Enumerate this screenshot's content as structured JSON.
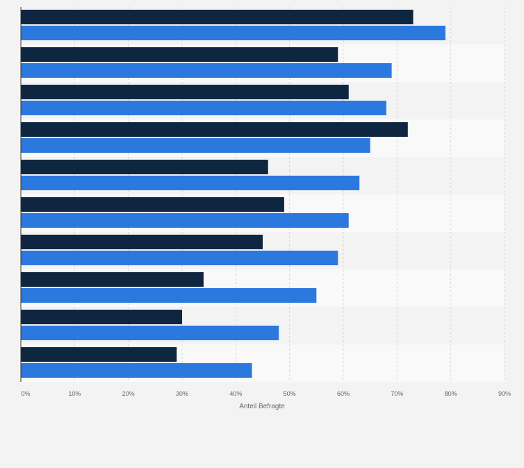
{
  "chart_data": {
    "type": "bar",
    "orientation": "horizontal",
    "title": "",
    "xlabel": "Anteil Befragte",
    "ylabel": "",
    "xlim": [
      0,
      90
    ],
    "x_ticks": [
      "0%",
      "10%",
      "20%",
      "30%",
      "40%",
      "50%",
      "60%",
      "70%",
      "80%",
      "90%"
    ],
    "categories": [
      "",
      "",
      "",
      "",
      "",
      "",
      "",
      "",
      "",
      ""
    ],
    "series": [
      {
        "color": "#0f2640",
        "values": [
          73,
          59,
          61,
          72,
          46,
          49,
          45,
          34,
          30,
          29
        ]
      },
      {
        "color": "#2b78df",
        "values": [
          79,
          69,
          68,
          65,
          63,
          61,
          59,
          55,
          48,
          43
        ]
      }
    ],
    "grid": true,
    "legend": "none"
  }
}
